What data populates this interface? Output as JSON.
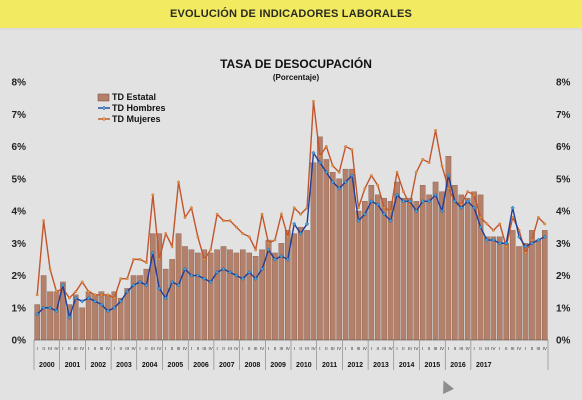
{
  "header": {
    "banner": "EVOLUCIÓN DE INDICADORES LABORALES"
  },
  "chart_data": {
    "type": "bar+line",
    "title": "TASA DE DESOCUPACIÓN",
    "subtitle": "(Porcentaje)",
    "ylim": [
      0,
      8
    ],
    "yticks_left": [
      "0%",
      "1%",
      "2%",
      "3%",
      "4%",
      "5%",
      "6%",
      "7%",
      "8%"
    ],
    "yticks_right": [
      "0%",
      "1%",
      "2%",
      "3%",
      "4%",
      "5%",
      "6%",
      "7%",
      "8%"
    ],
    "quarter_labels": [
      "I",
      "II",
      "III",
      "IV"
    ],
    "years": [
      "2000",
      "2001",
      "2002",
      "2003",
      "2004",
      "2005",
      "2006",
      "2007",
      "2008",
      "2009",
      "2010",
      "2011",
      "2012",
      "2013",
      "2014",
      "2015",
      "2016",
      "2017"
    ],
    "legend_position": "top-left",
    "grid": false,
    "series": [
      {
        "name": "TD Estatal",
        "type": "bar",
        "color": "#b5806a",
        "values": [
          1.1,
          2.0,
          1.5,
          1.5,
          1.8,
          1.1,
          1.4,
          1.0,
          1.5,
          1.4,
          1.5,
          1.4,
          1.5,
          1.3,
          1.6,
          2.0,
          2.0,
          2.2,
          3.3,
          3.3,
          2.2,
          2.5,
          3.3,
          2.9,
          2.8,
          2.7,
          2.8,
          2.7,
          2.8,
          2.9,
          2.8,
          2.7,
          2.8,
          2.7,
          2.6,
          2.8,
          3.1,
          2.7,
          3.0,
          3.4,
          3.3,
          3.5,
          3.4,
          5.5,
          6.3,
          5.6,
          5.2,
          5.0,
          5.3,
          5.3,
          4.0,
          4.3,
          4.8,
          4.5,
          4.4,
          4.3,
          4.9,
          4.4,
          4.4,
          4.3,
          4.8,
          4.5,
          4.9,
          4.6,
          5.7,
          4.8,
          4.5,
          4.4,
          4.6,
          4.5,
          3.2,
          3.2,
          3.2,
          3.0,
          3.4,
          2.9,
          3.0,
          3.4,
          3.1,
          3.4
        ]
      },
      {
        "name": "TD Hombres",
        "type": "line",
        "color": "#1f3f9a",
        "values": [
          0.8,
          1.0,
          1.0,
          0.9,
          1.7,
          0.7,
          1.3,
          1.2,
          1.3,
          1.2,
          1.1,
          0.9,
          1.0,
          1.2,
          1.5,
          1.7,
          1.8,
          1.7,
          2.7,
          1.6,
          1.3,
          1.8,
          1.7,
          2.2,
          2.0,
          2.0,
          1.9,
          1.8,
          2.1,
          2.2,
          2.1,
          2.0,
          1.9,
          2.1,
          1.9,
          2.2,
          2.8,
          2.5,
          2.6,
          2.5,
          3.6,
          3.3,
          3.6,
          5.8,
          5.5,
          5.2,
          4.9,
          4.7,
          4.9,
          5.1,
          3.7,
          3.9,
          4.3,
          4.2,
          3.9,
          3.7,
          4.5,
          4.3,
          4.3,
          4.0,
          4.3,
          4.3,
          4.5,
          4.0,
          5.1,
          4.3,
          4.1,
          4.3,
          4.1,
          3.5,
          3.1,
          3.1,
          3.0,
          3.0,
          4.1,
          3.2,
          2.9,
          3.0,
          3.1,
          3.2
        ]
      },
      {
        "name": "TD Mujeres",
        "type": "line",
        "color": "#c2552b",
        "values": [
          1.4,
          3.7,
          2.2,
          1.5,
          1.6,
          1.3,
          1.5,
          1.8,
          1.5,
          1.4,
          1.4,
          1.4,
          1.3,
          1.9,
          1.9,
          2.5,
          2.5,
          2.4,
          4.5,
          2.5,
          3.3,
          2.9,
          4.9,
          3.8,
          4.1,
          3.2,
          2.5,
          2.8,
          3.9,
          3.7,
          3.7,
          3.5,
          3.3,
          3.2,
          2.8,
          3.9,
          3.0,
          3.1,
          3.9,
          3.2,
          4.1,
          3.9,
          4.1,
          7.4,
          5.7,
          6.0,
          5.4,
          5.2,
          6.0,
          5.9,
          4.1,
          4.7,
          5.1,
          4.8,
          4.1,
          4.0,
          5.2,
          4.6,
          4.2,
          5.2,
          5.6,
          5.5,
          6.5,
          5.4,
          4.7,
          4.3,
          4.2,
          4.6,
          4.5,
          3.8,
          3.6,
          3.4,
          3.6,
          2.9,
          3.8,
          3.4,
          2.7,
          3.1,
          3.8,
          3.6
        ]
      }
    ]
  }
}
